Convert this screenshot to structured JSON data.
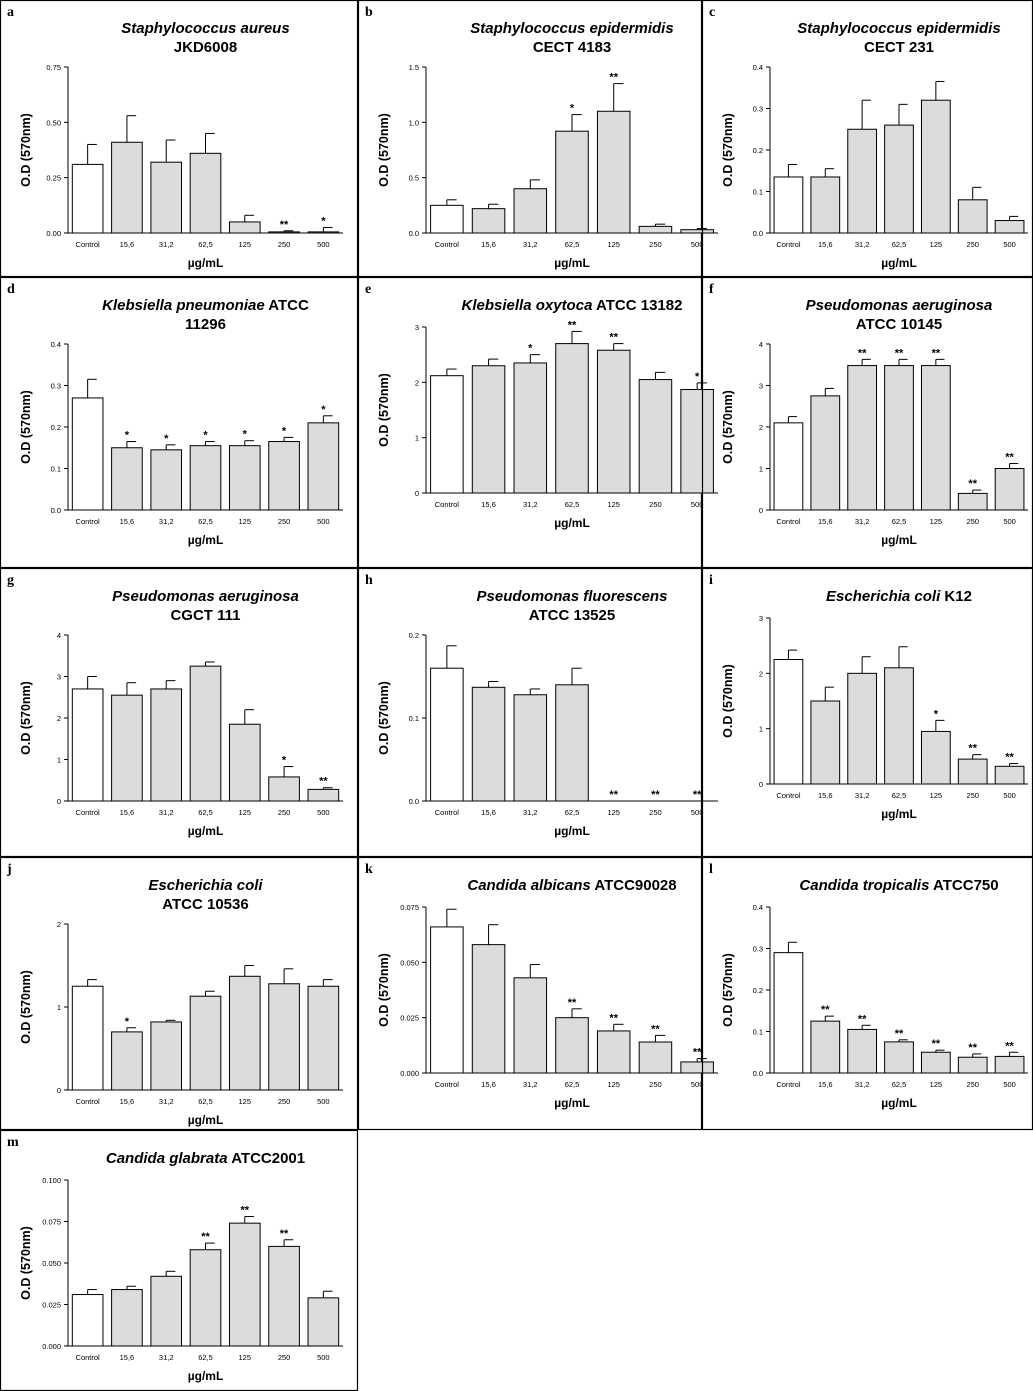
{
  "colors": {
    "control_fill": "#ffffff",
    "treatment_fill": "#dcdcdc",
    "stroke": "#000000"
  },
  "chart_data": [
    {
      "panel": "a",
      "type": "bar",
      "title_lines": [
        [
          {
            "t": "Staphylococcus aureus",
            "i": true
          }
        ],
        [
          {
            "t": "JKD6008",
            "i": false
          }
        ]
      ],
      "xlabel": "µg/mL",
      "ylabel": "O.D (570nm)",
      "categories": [
        "Control",
        "15,6",
        "31,2",
        "62,5",
        "125",
        "250",
        "500"
      ],
      "values": [
        0.31,
        0.41,
        0.32,
        0.36,
        0.05,
        0.005,
        0.005
      ],
      "errors": [
        0.09,
        0.12,
        0.1,
        0.09,
        0.03,
        0.005,
        0.02
      ],
      "significance": [
        "",
        "",
        "",
        "",
        "",
        "**",
        "*"
      ],
      "ylim": [
        0,
        0.75
      ],
      "yticks": [
        "0.00",
        "0.25",
        "0.50",
        "0.75"
      ]
    },
    {
      "panel": "b",
      "type": "bar",
      "title_lines": [
        [
          {
            "t": "Staphylococcus epidermidis",
            "i": true
          }
        ],
        [
          {
            "t": "CECT 4183",
            "i": false
          }
        ]
      ],
      "xlabel": "µg/mL",
      "ylabel": "O.D (570nm)",
      "categories": [
        "Control",
        "15,6",
        "31,2",
        "62,5",
        "125",
        "250",
        "500"
      ],
      "values": [
        0.25,
        0.22,
        0.4,
        0.92,
        1.1,
        0.06,
        0.03
      ],
      "errors": [
        0.05,
        0.04,
        0.08,
        0.15,
        0.25,
        0.02,
        0.01
      ],
      "significance": [
        "",
        "",
        "",
        "*",
        "**",
        "",
        ""
      ],
      "ylim": [
        0,
        1.5
      ],
      "yticks": [
        "0.0",
        "0.5",
        "1.0",
        "1.5"
      ]
    },
    {
      "panel": "c",
      "type": "bar",
      "title_lines": [
        [
          {
            "t": "Staphylococcus epidermidis",
            "i": true
          }
        ],
        [
          {
            "t": "CECT 231",
            "i": false
          }
        ]
      ],
      "xlabel": "µg/mL",
      "ylabel": "O.D (570nm)",
      "categories": [
        "Control",
        "15,6",
        "31,2",
        "62,5",
        "125",
        "250",
        "500"
      ],
      "values": [
        0.135,
        0.135,
        0.25,
        0.26,
        0.32,
        0.08,
        0.03
      ],
      "errors": [
        0.03,
        0.02,
        0.07,
        0.05,
        0.045,
        0.03,
        0.01
      ],
      "significance": [
        "",
        "",
        "",
        "",
        "",
        "",
        ""
      ],
      "ylim": [
        0,
        0.4
      ],
      "yticks": [
        "0.0",
        "0.1",
        "0.2",
        "0.3",
        "0.4"
      ]
    },
    {
      "panel": "d",
      "type": "bar",
      "title_lines": [
        [
          {
            "t": "Klebsiella pneumoniae",
            "i": true
          },
          {
            "t": " ATCC",
            "i": false
          }
        ],
        [
          {
            "t": "11296",
            "i": false
          }
        ]
      ],
      "xlabel": "µg/mL",
      "ylabel": "O.D (570nm)",
      "categories": [
        "Control",
        "15,6",
        "31,2",
        "62,5",
        "125",
        "250",
        "500"
      ],
      "values": [
        0.27,
        0.15,
        0.145,
        0.155,
        0.155,
        0.165,
        0.21
      ],
      "errors": [
        0.045,
        0.015,
        0.012,
        0.01,
        0.012,
        0.01,
        0.017
      ],
      "significance": [
        "",
        "*",
        "*",
        "*",
        "*",
        "*",
        "*"
      ],
      "ylim": [
        0,
        0.4
      ],
      "yticks": [
        "0.0",
        "0.1",
        "0.2",
        "0.3",
        "0.4"
      ]
    },
    {
      "panel": "e",
      "type": "bar",
      "title_lines": [
        [
          {
            "t": "Klebsiella oxytoca",
            "i": true
          },
          {
            "t": " ATCC 13182",
            "i": false
          }
        ]
      ],
      "xlabel": "µg/mL",
      "ylabel": "O.D (570nm)",
      "categories": [
        "Control",
        "15,6",
        "31,2",
        "62,5",
        "125",
        "250",
        "500"
      ],
      "values": [
        2.12,
        2.3,
        2.35,
        2.7,
        2.58,
        2.05,
        1.87
      ],
      "errors": [
        0.12,
        0.12,
        0.15,
        0.22,
        0.12,
        0.13,
        0.12
      ],
      "significance": [
        "",
        "",
        "*",
        "**",
        "**",
        "",
        "*"
      ],
      "ylim": [
        0,
        3
      ],
      "yticks": [
        "0",
        "1",
        "2",
        "3"
      ]
    },
    {
      "panel": "f",
      "type": "bar",
      "title_lines": [
        [
          {
            "t": "Pseudomonas aeruginosa",
            "i": true
          }
        ],
        [
          {
            "t": "ATCC 10145",
            "i": false
          }
        ]
      ],
      "xlabel": "µg/mL",
      "ylabel": "O.D (570nm)",
      "categories": [
        "Control",
        "15,6",
        "31,2",
        "62,5",
        "125",
        "250",
        "500"
      ],
      "values": [
        2.1,
        2.75,
        3.48,
        3.48,
        3.48,
        0.4,
        1.0
      ],
      "errors": [
        0.15,
        0.18,
        0.15,
        0.15,
        0.15,
        0.08,
        0.12
      ],
      "significance": [
        "",
        "",
        "**",
        "**",
        "**",
        "**",
        "**"
      ],
      "ylim": [
        0,
        4
      ],
      "yticks": [
        "0",
        "1",
        "2",
        "3",
        "4"
      ]
    },
    {
      "panel": "g",
      "type": "bar",
      "title_lines": [
        [
          {
            "t": "Pseudomonas aeruginosa",
            "i": true
          }
        ],
        [
          {
            "t": "CGCT 111",
            "i": false
          }
        ]
      ],
      "xlabel": "µg/mL",
      "ylabel": "O.D (570nm)",
      "categories": [
        "Control",
        "15,6",
        "31,2",
        "62,5",
        "125",
        "250",
        "500"
      ],
      "values": [
        2.7,
        2.55,
        2.7,
        3.25,
        1.85,
        0.58,
        0.28
      ],
      "errors": [
        0.3,
        0.3,
        0.2,
        0.1,
        0.35,
        0.25,
        0.04
      ],
      "significance": [
        "",
        "",
        "",
        "",
        "",
        "*",
        "**"
      ],
      "ylim": [
        0,
        4
      ],
      "yticks": [
        "0",
        "1",
        "2",
        "3",
        "4"
      ]
    },
    {
      "panel": "h",
      "type": "bar",
      "title_lines": [
        [
          {
            "t": "Pseudomonas fluorescens",
            "i": true
          }
        ],
        [
          {
            "t": "ATCC 13525",
            "i": false
          }
        ]
      ],
      "xlabel": "µg/mL",
      "ylabel": "O.D (570nm)",
      "categories": [
        "Control",
        "15,6",
        "31,2",
        "62,5",
        "125",
        "250",
        "500"
      ],
      "values": [
        0.16,
        0.137,
        0.128,
        0.14,
        0,
        0,
        0
      ],
      "errors": [
        0.027,
        0.007,
        0.007,
        0.02,
        0,
        0,
        0
      ],
      "significance": [
        "",
        "",
        "",
        "",
        "**",
        "**",
        "**"
      ],
      "ylim": [
        0,
        0.2
      ],
      "yticks": [
        "0.0",
        "0.1",
        "0.2"
      ]
    },
    {
      "panel": "i",
      "type": "bar",
      "title_lines": [
        [
          {
            "t": "Escherichia coli",
            "i": true
          },
          {
            "t": " K12",
            "i": false
          }
        ]
      ],
      "xlabel": "µg/mL",
      "ylabel": "O.D (570nm)",
      "categories": [
        "Control",
        "15,6",
        "31,2",
        "62,5",
        "125",
        "250",
        "500"
      ],
      "values": [
        2.25,
        1.5,
        2.0,
        2.1,
        0.95,
        0.45,
        0.32
      ],
      "errors": [
        0.17,
        0.25,
        0.3,
        0.38,
        0.2,
        0.08,
        0.05
      ],
      "significance": [
        "",
        "",
        "",
        "",
        "*",
        "**",
        "**"
      ],
      "ylim": [
        0,
        3
      ],
      "yticks": [
        "0",
        "1",
        "2",
        "3"
      ]
    },
    {
      "panel": "j",
      "type": "bar",
      "title_lines": [
        [
          {
            "t": "Escherichia coli",
            "i": true
          }
        ],
        [
          {
            "t": "ATCC 10536",
            "i": false
          }
        ]
      ],
      "xlabel": "µg/mL",
      "ylabel": "O.D (570nm)",
      "categories": [
        "Control",
        "15,6",
        "31,2",
        "62,5",
        "125",
        "250",
        "500"
      ],
      "values": [
        1.25,
        0.7,
        0.82,
        1.13,
        1.37,
        1.28,
        1.25
      ],
      "errors": [
        0.08,
        0.05,
        0.02,
        0.06,
        0.13,
        0.18,
        0.08
      ],
      "significance": [
        "",
        "*",
        "",
        "",
        "",
        "",
        ""
      ],
      "ylim": [
        0,
        2
      ],
      "yticks": [
        "0",
        "1",
        "2"
      ]
    },
    {
      "panel": "k",
      "type": "bar",
      "title_lines": [
        [
          {
            "t": "Candida albicans",
            "i": true
          },
          {
            "t": " ATCC90028",
            "i": false
          }
        ]
      ],
      "xlabel": "µg/mL",
      "ylabel": "O.D (570nm)",
      "categories": [
        "Control",
        "15,6",
        "31,2",
        "62,5",
        "125",
        "250",
        "500"
      ],
      "values": [
        0.066,
        0.058,
        0.043,
        0.025,
        0.019,
        0.014,
        0.005
      ],
      "errors": [
        0.008,
        0.009,
        0.006,
        0.004,
        0.003,
        0.003,
        0.0015
      ],
      "significance": [
        "",
        "",
        "",
        "**",
        "**",
        "**",
        "**"
      ],
      "ylim": [
        0,
        0.075
      ],
      "yticks": [
        "0.000",
        "0.025",
        "0.050",
        "0.075"
      ]
    },
    {
      "panel": "l",
      "type": "bar",
      "title_lines": [
        [
          {
            "t": "Candida tropicalis",
            "i": true
          },
          {
            "t": " ATCC750",
            "i": false
          }
        ]
      ],
      "xlabel": "µg/mL",
      "ylabel": "O.D (570nm)",
      "categories": [
        "Control",
        "15,6",
        "31,2",
        "62,5",
        "125",
        "250",
        "500"
      ],
      "values": [
        0.29,
        0.125,
        0.105,
        0.075,
        0.05,
        0.038,
        0.04
      ],
      "errors": [
        0.025,
        0.012,
        0.01,
        0.005,
        0.005,
        0.008,
        0.01
      ],
      "significance": [
        "",
        "**",
        "**",
        "**",
        "**",
        "**",
        "**"
      ],
      "ylim": [
        0,
        0.4
      ],
      "yticks": [
        "0.0",
        "0.1",
        "0.2",
        "0.3",
        "0.4"
      ]
    },
    {
      "panel": "m",
      "type": "bar",
      "title_lines": [
        [
          {
            "t": "Candida glabrata",
            "i": true
          },
          {
            "t": " ATCC2001",
            "i": false
          }
        ]
      ],
      "xlabel": "µg/mL",
      "ylabel": "O.D (570nm)",
      "categories": [
        "Control",
        "15,6",
        "31,2",
        "62,5",
        "125",
        "250",
        "500"
      ],
      "values": [
        0.031,
        0.034,
        0.042,
        0.058,
        0.074,
        0.06,
        0.029
      ],
      "errors": [
        0.003,
        0.002,
        0.003,
        0.004,
        0.004,
        0.004,
        0.004
      ],
      "significance": [
        "",
        "",
        "",
        "**",
        "**",
        "**",
        ""
      ],
      "ylim": [
        0,
        0.1
      ],
      "yticks": [
        "0.000",
        "0.025",
        "0.050",
        "0.075",
        "0.100"
      ]
    }
  ]
}
